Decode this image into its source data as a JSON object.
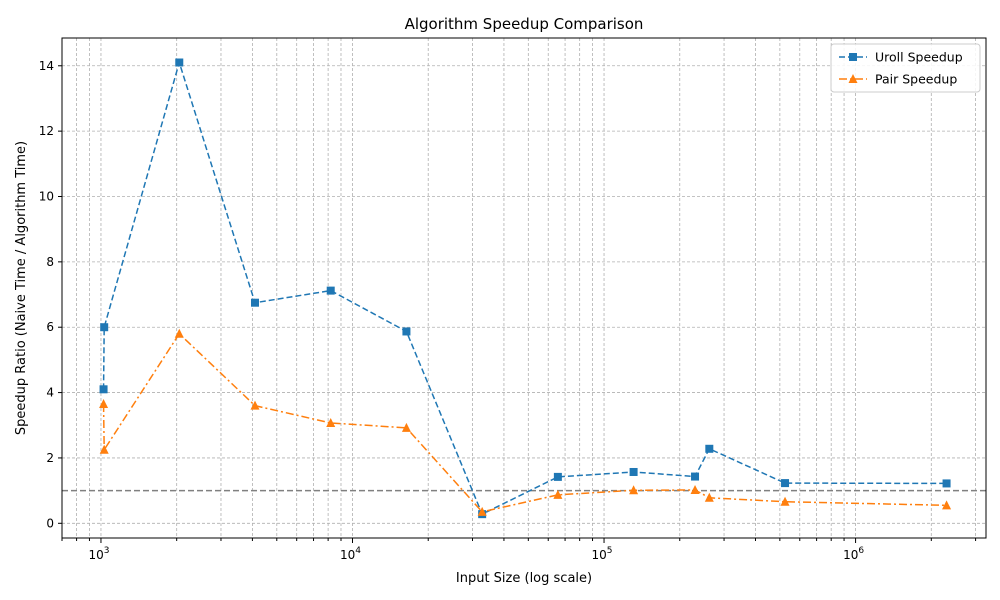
{
  "chart_data": {
    "type": "line",
    "title": "Algorithm Speedup Comparison",
    "xlabel": "Input Size (log scale)",
    "ylabel": "Speedup Ratio (Naive Time / Algorithm Time)",
    "x_scale": "log",
    "xlim": [
      700,
      3300000
    ],
    "ylim": [
      -0.45,
      14.85
    ],
    "x_ticks": [
      {
        "value": 1000,
        "base": "10",
        "exp": "3"
      },
      {
        "value": 10000,
        "base": "10",
        "exp": "4"
      },
      {
        "value": 100000,
        "base": "10",
        "exp": "5"
      },
      {
        "value": 1000000,
        "base": "10",
        "exp": "6"
      }
    ],
    "y_ticks": [
      0,
      2,
      4,
      6,
      8,
      10,
      12,
      14
    ],
    "grid": true,
    "legend": "top-right",
    "reference_line": {
      "y": 1,
      "style": "dashed",
      "color": "#808080"
    },
    "x": [
      1024,
      1030,
      2048,
      4096,
      8192,
      16384,
      32768,
      65536,
      131072,
      230000,
      262144,
      524288,
      2300000
    ],
    "series": [
      {
        "name": "Uroll Speedup",
        "color": "#1f77b4",
        "marker": "square",
        "linestyle": "dashed",
        "values": [
          4.1,
          6.0,
          14.1,
          6.75,
          7.12,
          5.87,
          0.28,
          1.42,
          1.57,
          1.43,
          2.28,
          1.23,
          1.22
        ]
      },
      {
        "name": "Pair Speedup",
        "color": "#ff7f0e",
        "marker": "triangle",
        "linestyle": "dashdot",
        "values": [
          3.65,
          2.25,
          5.8,
          3.6,
          3.07,
          2.92,
          0.35,
          0.87,
          1.01,
          1.02,
          0.78,
          0.66,
          0.55
        ]
      }
    ]
  }
}
